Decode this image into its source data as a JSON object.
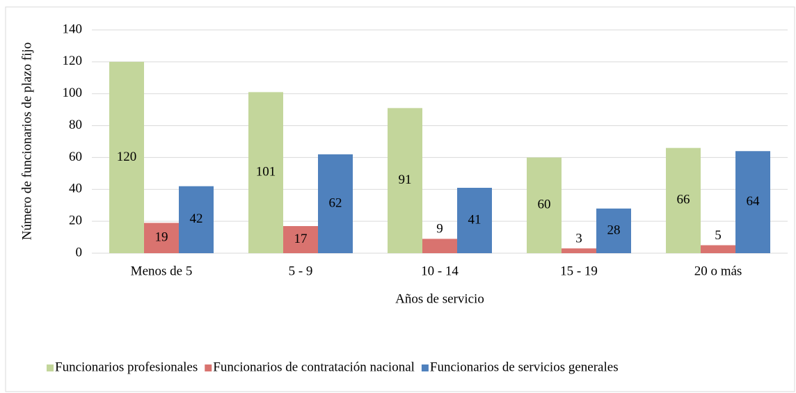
{
  "chart_data": {
    "type": "bar",
    "y_axis_label": "Número de funcionarios de plazo fijo",
    "x_axis_label": "Años de servicio",
    "categories": [
      "Menos de 5",
      "5 - 9",
      "10 - 14",
      "15 - 19",
      "20 o más"
    ],
    "series": [
      {
        "name": "Funcionarios profesionales",
        "color": "#c3d69b",
        "values": [
          120,
          101,
          91,
          60,
          66
        ]
      },
      {
        "name": "Funcionarios de contratación nacional",
        "color": "#d9736f",
        "values": [
          19,
          17,
          9,
          3,
          5
        ]
      },
      {
        "name": "Funcionarios de servicios generales",
        "color": "#4f81bd",
        "values": [
          42,
          62,
          41,
          28,
          64
        ]
      }
    ],
    "ylim": [
      0,
      140
    ],
    "yticks": [
      0,
      20,
      40,
      60,
      80,
      100,
      120,
      140
    ],
    "grid": true,
    "legend": "bottom"
  }
}
